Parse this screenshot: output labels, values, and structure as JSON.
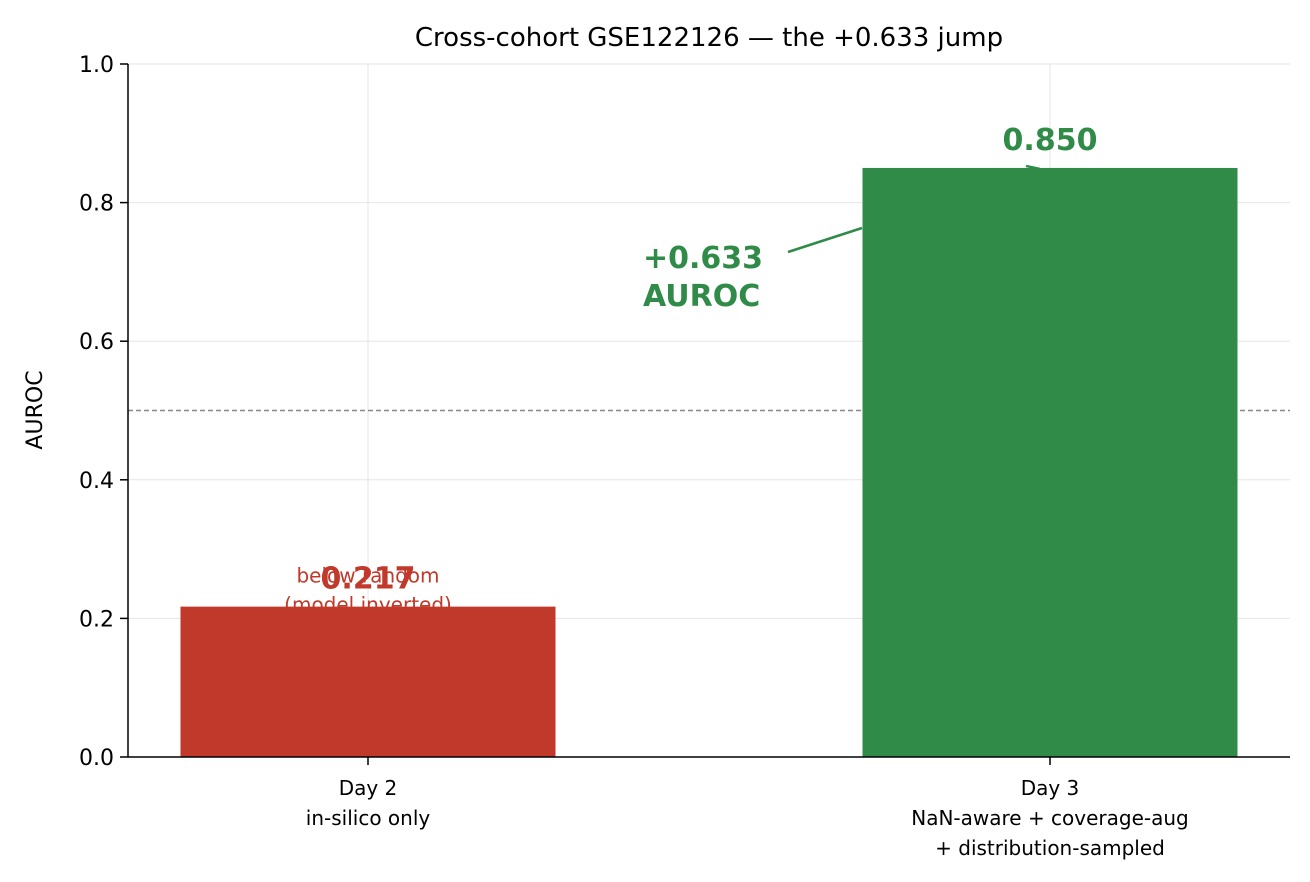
{
  "chart_data": {
    "type": "bar",
    "title": "Cross-cohort GSE122126 — the +0.633 jump",
    "xlabel": "",
    "ylabel": "AUROC",
    "ylim": [
      0,
      1.0
    ],
    "yticks": [
      "0.0",
      "0.2",
      "0.4",
      "0.6",
      "0.8",
      "1.0"
    ],
    "grid": true,
    "reference_line": {
      "y": 0.5,
      "style": "dashed",
      "color": "#888888"
    },
    "categories": [
      [
        "Day 2",
        "in-silico only"
      ],
      [
        "Day 3",
        "NaN-aware + coverage-aug",
        "+ distribution-sampled"
      ]
    ],
    "values": [
      0.217,
      0.85
    ],
    "value_labels": [
      "0.217",
      "0.850"
    ],
    "colors": [
      "#c0392b",
      "#2f8b47"
    ],
    "annotations": [
      {
        "text": [
          "below random",
          "(model inverted)"
        ],
        "color": "#c0392b",
        "bar": 0
      },
      {
        "text": [
          "+0.633",
          "AUROC"
        ],
        "color": "#2f8b47",
        "bold": true,
        "x": 0.5,
        "y": 0.675,
        "arrow_to": {
          "x": 1,
          "y": 0.85
        }
      }
    ]
  }
}
